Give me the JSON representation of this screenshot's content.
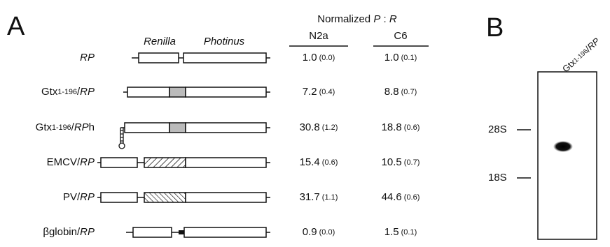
{
  "panel_a": {
    "label": "A",
    "header": [
      {
        "text": "Normalized "
      },
      {
        "text": "P",
        "style": "italic"
      },
      {
        "text": " : "
      },
      {
        "text": "R",
        "style": "italic"
      }
    ],
    "columns": [
      "N2a",
      "C6"
    ],
    "genes": [
      "Renilla",
      "Photinus"
    ],
    "rows": [
      {
        "label": [
          {
            "text": "RP",
            "style": "italic"
          }
        ],
        "n2a": [
          "1.0",
          "(0.0)"
        ],
        "c6": [
          "1.0",
          "(0.1)"
        ]
      },
      {
        "label": [
          {
            "text": "Gtx"
          },
          {
            "text": "1-196",
            "style": "small"
          },
          {
            "text": "/"
          },
          {
            "text": "RP",
            "style": "italic"
          }
        ],
        "n2a": [
          "7.2",
          "(0.4)"
        ],
        "c6": [
          "8.8",
          "(0.7)"
        ]
      },
      {
        "label": [
          {
            "text": "Gtx"
          },
          {
            "text": "1-196",
            "style": "small"
          },
          {
            "text": "/"
          },
          {
            "text": "RP",
            "style": "italic"
          },
          {
            "text": "h"
          }
        ],
        "n2a": [
          "30.8",
          "(1.2)"
        ],
        "c6": [
          "18.8",
          "(0.6)"
        ]
      },
      {
        "label": [
          {
            "text": "EMCV/"
          },
          {
            "text": "RP",
            "style": "italic"
          }
        ],
        "n2a": [
          "15.4",
          "(0.6)"
        ],
        "c6": [
          "10.5",
          "(0.7)"
        ]
      },
      {
        "label": [
          {
            "text": "PV/"
          },
          {
            "text": "RP",
            "style": "italic"
          }
        ],
        "n2a": [
          "31.7",
          "(1.1)"
        ],
        "c6": [
          "44.6",
          "(0.6)"
        ]
      },
      {
        "label": [
          {
            "text": "βglobin/"
          },
          {
            "text": "RP",
            "style": "italic"
          }
        ],
        "n2a": [
          "0.9",
          "(0.0)"
        ],
        "c6": [
          "1.5",
          "(0.1)"
        ]
      }
    ]
  },
  "panel_b": {
    "label": "B",
    "lane": [
      {
        "text": "Gtx"
      },
      {
        "text": "1-196",
        "style": "small"
      },
      {
        "text": "/"
      },
      {
        "text": "RP",
        "style": "italic"
      }
    ],
    "markers": [
      "28S",
      "18S"
    ]
  }
}
